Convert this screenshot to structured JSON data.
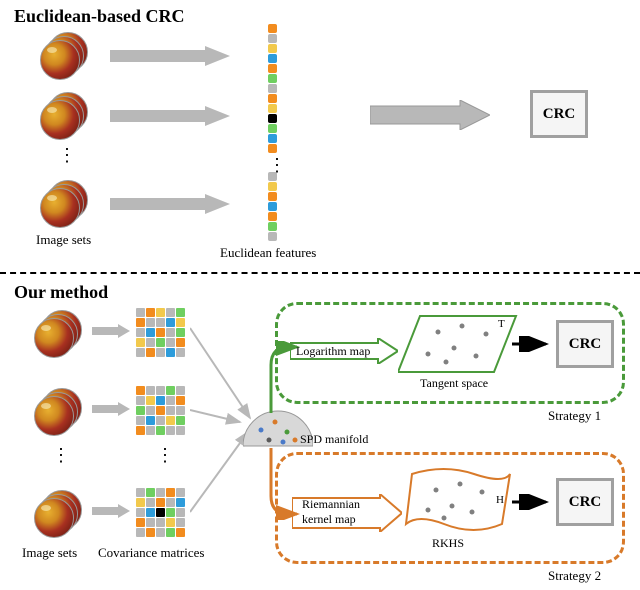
{
  "top": {
    "title": "Euclidean-based CRC",
    "imageSetsLabel": "Image sets",
    "featuresLabel": "Euclidean features",
    "crcLabel": "CRC",
    "crcBorderColor": "#a0a0a0",
    "arrowColor": "#b8b8b8",
    "featCols": [
      [
        "#f28c1e",
        "#b8b8b8",
        "#f2c94c",
        "#2d9cdb",
        "#f28c1e",
        "#6fcf60",
        "#b8b8b8"
      ],
      [
        "#b8b8b8",
        "#f28c1e",
        "#f2c94c",
        "#000000",
        "#6fcf60",
        "#2d9cdb",
        "#f28c1e"
      ],
      [
        "#b8b8b8",
        "#f2c94c",
        "#f28c1e",
        "#2d9cdb",
        "#f28c1e",
        "#6fcf60",
        "#b8b8b8"
      ]
    ]
  },
  "bottom": {
    "title": "Our method",
    "imageSetsLabel": "Image sets",
    "covLabel": "Covariance matrices",
    "spdLabel": "SPD manifold",
    "strategy1": {
      "boxColor": "#4a9a3a",
      "mapLabel": "Logarithm map",
      "spaceLabel": "Tangent space",
      "spaceLetter": "T",
      "strategyLabel": "Strategy 1",
      "crcLabel": "CRC",
      "arrowFromManifold": "#4a9a3a"
    },
    "strategy2": {
      "boxColor": "#d87a2a",
      "mapLabel1": "Riemannian",
      "mapLabel2": "kernel map",
      "spaceLabel": "RKHS",
      "spaceLetter": "H",
      "strategyLabel": "Strategy 2",
      "crcLabel": "CRC",
      "arrowFromManifold": "#d87a2a"
    },
    "arrowGray": "#b8b8b8",
    "crcBorderColor": "#a0a0a0",
    "manifoldFill": "#d8d8d8",
    "manifoldDots": [
      "#4a7ac8",
      "#d87a2a",
      "#4a9a3a",
      "#5a5a5a",
      "#d87a2a",
      "#4a7ac8"
    ],
    "covGrids": [
      [
        "#b8b8b8",
        "#f28c1e",
        "#f2c94c",
        "#b8b8b8",
        "#6fcf60",
        "#f28c1e",
        "#b8b8b8",
        "#b8b8b8",
        "#2d9cdb",
        "#f2c94c",
        "#b8b8b8",
        "#2d9cdb",
        "#f28c1e",
        "#b8b8b8",
        "#6fcf60",
        "#f2c94c",
        "#b8b8b8",
        "#6fcf60",
        "#b8b8b8",
        "#f28c1e",
        "#b8b8b8",
        "#f28c1e",
        "#b8b8b8",
        "#2d9cdb",
        "#b8b8b8"
      ],
      [
        "#f28c1e",
        "#b8b8b8",
        "#b8b8b8",
        "#6fcf60",
        "#b8b8b8",
        "#b8b8b8",
        "#f2c94c",
        "#2d9cdb",
        "#b8b8b8",
        "#f28c1e",
        "#6fcf60",
        "#b8b8b8",
        "#f28c1e",
        "#b8b8b8",
        "#b8b8b8",
        "#b8b8b8",
        "#2d9cdb",
        "#b8b8b8",
        "#f2c94c",
        "#6fcf60",
        "#f28c1e",
        "#b8b8b8",
        "#6fcf60",
        "#b8b8b8",
        "#b8b8b8"
      ],
      [
        "#b8b8b8",
        "#6fcf60",
        "#b8b8b8",
        "#f28c1e",
        "#b8b8b8",
        "#f2c94c",
        "#b8b8b8",
        "#f28c1e",
        "#b8b8b8",
        "#2d9cdb",
        "#b8b8b8",
        "#2d9cdb",
        "#000000",
        "#6fcf60",
        "#b8b8b8",
        "#f28c1e",
        "#b8b8b8",
        "#b8b8b8",
        "#f2c94c",
        "#b8b8b8",
        "#b8b8b8",
        "#f28c1e",
        "#b8b8b8",
        "#6fcf60",
        "#f28c1e"
      ]
    ]
  }
}
